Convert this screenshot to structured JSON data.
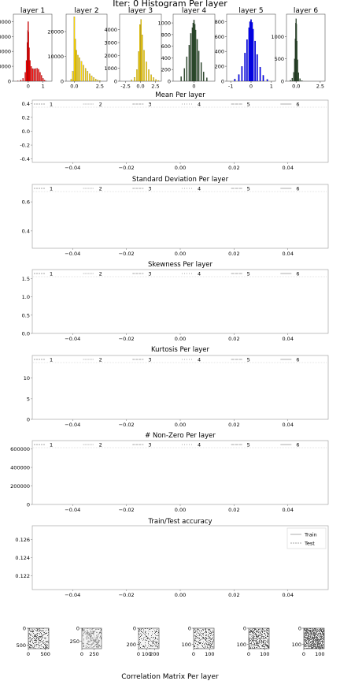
{
  "title": "Iter: 0 Histogram Per layer",
  "footer": "Correlation Matrix Per layer",
  "chart_data": [
    {
      "type": "bar",
      "role": "histograms",
      "hists": [
        {
          "title": "layer 1",
          "color": "#ff0000",
          "xlim": [
            -1.0,
            1.6
          ],
          "xticks": [
            0,
            1
          ],
          "ylim": [
            0,
            90000
          ],
          "yticks": [
            0,
            20000,
            40000,
            60000,
            80000
          ],
          "bins": [
            -0.7,
            -0.5,
            -0.35,
            -0.2,
            -0.12,
            -0.06,
            -0.02,
            0.0,
            0.02,
            0.06,
            0.12,
            0.2,
            0.3,
            0.4,
            0.5,
            0.6,
            0.7,
            0.8,
            0.9,
            1.0,
            1.1,
            1.2
          ],
          "counts": [
            500,
            1500,
            4000,
            12000,
            28000,
            52000,
            68000,
            80000,
            66000,
            45000,
            28000,
            20000,
            17000,
            16500,
            17000,
            17500,
            16000,
            12000,
            8000,
            4000,
            1500,
            400
          ]
        },
        {
          "title": "layer 2",
          "color": "#ffd700",
          "xlim": [
            -0.8,
            3.2
          ],
          "xticks": [
            0.0,
            2.5
          ],
          "ylim": [
            0,
            27000
          ],
          "yticks": [
            0,
            10000,
            20000
          ],
          "bins": [
            -0.3,
            -0.15,
            0.0,
            0.1,
            0.2,
            0.35,
            0.5,
            0.7,
            0.9,
            1.1,
            1.3,
            1.5,
            1.7,
            1.9,
            2.1,
            2.3,
            2.5
          ],
          "counts": [
            800,
            4000,
            26000,
            17000,
            12500,
            10500,
            9500,
            8000,
            6500,
            5200,
            4000,
            3000,
            2200,
            1500,
            900,
            500,
            250
          ]
        },
        {
          "title": "layer 3",
          "color": "#ffd700",
          "xlim": [
            -3.5,
            3.5
          ],
          "xticks": [
            -2.5,
            0.0,
            2.5
          ],
          "ylim": [
            0,
            5200
          ],
          "yticks": [
            0,
            1000,
            2000,
            3000,
            4000
          ],
          "bins": [
            -1.5,
            -1.0,
            -0.6,
            -0.3,
            -0.1,
            0.1,
            0.3,
            0.6,
            1.0,
            1.4,
            1.8,
            2.2,
            2.6,
            3.0
          ],
          "counts": [
            100,
            300,
            900,
            2300,
            4400,
            4800,
            3600,
            2400,
            1500,
            900,
            500,
            280,
            130,
            60
          ]
        },
        {
          "title": "layer 4",
          "color": "#2f4f2f",
          "xlim": [
            -1.3,
            1.3
          ],
          "xticks": [
            0
          ],
          "ylim": [
            0,
            1150
          ],
          "yticks": [
            0,
            200,
            400,
            600,
            800,
            1000
          ],
          "bins": [
            -0.8,
            -0.6,
            -0.45,
            -0.3,
            -0.2,
            -0.1,
            -0.05,
            0.0,
            0.05,
            0.1,
            0.2,
            0.3,
            0.45,
            0.6,
            0.8
          ],
          "counts": [
            80,
            220,
            420,
            620,
            820,
            920,
            1000,
            1050,
            980,
            880,
            720,
            520,
            320,
            160,
            60
          ]
        },
        {
          "title": "layer 5",
          "color": "#0000ff",
          "xlim": [
            -1.2,
            1.2
          ],
          "xticks": [
            -1,
            0,
            1
          ],
          "ylim": [
            0,
            900
          ],
          "yticks": [
            0,
            200,
            400,
            600,
            800
          ],
          "bins": [
            -0.8,
            -0.6,
            -0.45,
            -0.3,
            -0.2,
            -0.1,
            -0.05,
            0.0,
            0.05,
            0.1,
            0.2,
            0.3,
            0.45,
            0.6,
            0.8
          ],
          "counts": [
            30,
            90,
            200,
            380,
            560,
            720,
            800,
            830,
            790,
            700,
            540,
            360,
            190,
            80,
            25
          ]
        },
        {
          "title": "layer 6",
          "color": "#2f4f2f",
          "xlim": [
            -1.0,
            3.0
          ],
          "xticks": [
            0.0,
            2.5
          ],
          "ylim": [
            0,
            1500
          ],
          "yticks": [
            0,
            500,
            1000
          ],
          "bins": [
            -0.6,
            -0.4,
            -0.25,
            -0.15,
            -0.08,
            -0.03,
            0.0,
            0.03,
            0.08,
            0.15,
            0.25,
            0.4,
            0.6
          ],
          "counts": [
            20,
            70,
            200,
            500,
            950,
            1300,
            1400,
            1280,
            900,
            480,
            190,
            60,
            15
          ]
        }
      ]
    },
    {
      "type": "line",
      "title": "Mean Per layer",
      "legend": [
        "1",
        "2",
        "3",
        "4",
        "5",
        "6"
      ],
      "ylim": [
        -0.45,
        0.45
      ],
      "yticks": [
        -0.4,
        -0.2,
        0.0,
        0.2,
        0.4
      ],
      "xlim": [
        -0.055,
        0.055
      ],
      "xticks": [
        -0.04,
        -0.02,
        0.0,
        0.02,
        0.04
      ],
      "series": []
    },
    {
      "type": "line",
      "title": "Standard Deviation Per layer",
      "legend": [
        "1",
        "2",
        "3",
        "4",
        "5",
        "6"
      ],
      "ylim": [
        0.28,
        0.72
      ],
      "yticks": [
        0.4,
        0.6
      ],
      "xlim": [
        -0.055,
        0.055
      ],
      "xticks": [
        -0.04,
        -0.02,
        0.0,
        0.02,
        0.04
      ],
      "series": []
    },
    {
      "type": "line",
      "title": "Skewness Per layer",
      "legend": [
        "1",
        "2",
        "3",
        "4",
        "5",
        "6"
      ],
      "ylim": [
        0.0,
        1.75
      ],
      "yticks": [
        0.0,
        0.5,
        1.0,
        1.5
      ],
      "xlim": [
        -0.055,
        0.055
      ],
      "xticks": [
        -0.04,
        -0.02,
        0.0,
        0.02,
        0.04
      ],
      "series": []
    },
    {
      "type": "line",
      "title": "Kurtosis Per layer",
      "legend": [
        "1",
        "2",
        "3",
        "4",
        "5",
        "6"
      ],
      "ylim": [
        0,
        15.5
      ],
      "yticks": [
        0,
        5,
        10
      ],
      "xlim": [
        -0.055,
        0.055
      ],
      "xticks": [
        -0.04,
        -0.02,
        0.0,
        0.02,
        0.04
      ],
      "series": []
    },
    {
      "type": "line",
      "title": "# Non-Zero Per layer",
      "legend": [
        "1",
        "2",
        "3",
        "4",
        "5",
        "6"
      ],
      "ylim": [
        0,
        690000
      ],
      "yticks": [
        0,
        200000,
        400000,
        600000
      ],
      "xlim": [
        -0.055,
        0.055
      ],
      "xticks": [
        -0.04,
        -0.02,
        0.0,
        0.02,
        0.04
      ],
      "series": []
    },
    {
      "type": "line",
      "title": "Train/Test accuracy",
      "legend": [
        "Train",
        "Test"
      ],
      "ylim": [
        0.1205,
        0.1275
      ],
      "yticks": [
        0.122,
        0.124,
        0.126
      ],
      "xlim": [
        -0.055,
        0.055
      ],
      "xticks": [
        -0.04,
        -0.02,
        0.0,
        0.02,
        0.04
      ],
      "series": []
    },
    {
      "type": "heatmap",
      "role": "correlation",
      "mats": [
        {
          "size": 600,
          "ticks": [
            0,
            500
          ],
          "xticks": [
            0,
            500
          ],
          "density": 0.28
        },
        {
          "size": 400,
          "ticks": [
            0,
            250
          ],
          "xticks": [
            0,
            250
          ],
          "density": 0.22
        },
        {
          "size": 256,
          "ticks": [
            0,
            200
          ],
          "xticks": [
            0,
            100,
            200
          ],
          "density": 0.22
        },
        {
          "size": 128,
          "ticks": [
            0,
            100
          ],
          "xticks": [
            0,
            100
          ],
          "density": 0.3
        },
        {
          "size": 128,
          "ticks": [
            0,
            100
          ],
          "xticks": [
            0,
            100
          ],
          "density": 0.45
        },
        {
          "size": 128,
          "ticks": [
            0,
            100
          ],
          "xticks": [
            0,
            100
          ],
          "density": 0.7
        }
      ]
    }
  ]
}
